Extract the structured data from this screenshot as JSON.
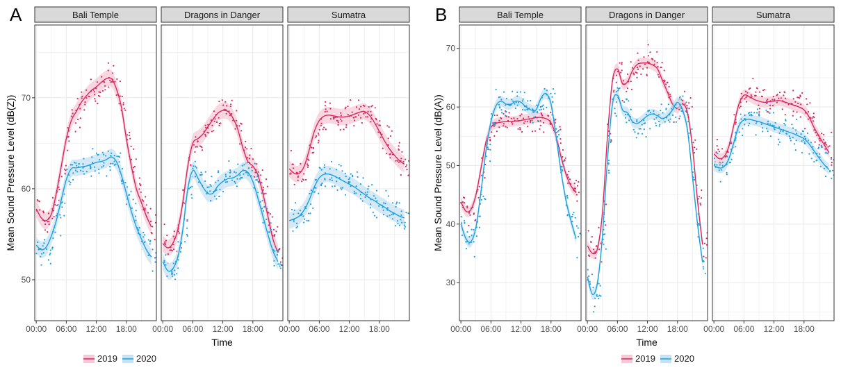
{
  "colors": {
    "series_2019": "#d6275e",
    "series_2020": "#1aa0e0",
    "band_2019": "#f6c9d6",
    "band_2020": "#c6e1f1",
    "strip_bg": "#d9d9d9",
    "grid": "#ebebeb"
  },
  "legend": {
    "items": [
      "2019",
      "2020"
    ]
  },
  "chart_data": [
    {
      "type": "line",
      "panel_label": "A",
      "xlabel": "Time",
      "ylabel": "Mean Sound Pressure Level (dB(Z))",
      "ylim": [
        45.5,
        78
      ],
      "xlim": [
        -0.3,
        24
      ],
      "y_ticks": [
        50,
        60,
        70
      ],
      "x_ticks": [
        0,
        6,
        12,
        18
      ],
      "x_tick_labels": [
        "00:00",
        "06:00",
        "12:00",
        "18:00"
      ],
      "grid": true,
      "legend_position": "bottom",
      "facets": [
        {
          "name": "Bali Temple",
          "series": [
            {
              "name": "2019",
              "x": [
                0,
                1,
                2,
                3,
                4,
                5,
                6,
                7,
                8,
                9,
                10,
                11,
                12,
                13,
                14,
                15,
                16,
                17,
                18,
                19,
                20,
                21,
                22,
                23
              ],
              "values": [
                57.8,
                56.8,
                56.5,
                57.2,
                59.5,
                62.5,
                65.5,
                67.5,
                68.5,
                69.5,
                70.2,
                70.8,
                71.2,
                71.7,
                72.1,
                72.1,
                71.0,
                69.0,
                65.5,
                62.5,
                60.0,
                58.5,
                57.0,
                55.8
              ]
            },
            {
              "name": "2020",
              "x": [
                0,
                1,
                2,
                3,
                4,
                5,
                6,
                7,
                8,
                9,
                10,
                11,
                12,
                13,
                14,
                15,
                16,
                17,
                18,
                19,
                20,
                21,
                22,
                23
              ],
              "values": [
                53.8,
                53.3,
                53.6,
                54.8,
                56.5,
                58.8,
                61.0,
                62.2,
                62.3,
                62.4,
                62.5,
                62.7,
                62.9,
                63.0,
                63.2,
                63.5,
                63.0,
                61.5,
                59.5,
                57.5,
                55.8,
                54.5,
                53.3,
                52.5
              ]
            }
          ]
        },
        {
          "name": "Dragons in Danger",
          "series": [
            {
              "name": "2019",
              "x": [
                0,
                1,
                2,
                3,
                4,
                5,
                6,
                7,
                8,
                9,
                10,
                11,
                12,
                13,
                14,
                15,
                16,
                17,
                18,
                19,
                20,
                21,
                22,
                23
              ],
              "values": [
                54.0,
                53.5,
                54.0,
                55.5,
                58.5,
                62.5,
                65.0,
                65.5,
                66.0,
                66.8,
                67.6,
                68.3,
                68.6,
                68.5,
                67.8,
                66.5,
                64.5,
                63.0,
                62.5,
                61.5,
                59.5,
                57.0,
                54.5,
                53.0
              ]
            },
            {
              "name": "2020",
              "x": [
                0,
                1,
                2,
                3,
                4,
                5,
                6,
                7,
                8,
                9,
                10,
                11,
                12,
                13,
                14,
                15,
                16,
                17,
                18,
                19,
                20,
                21,
                22,
                23
              ],
              "values": [
                52.0,
                51.0,
                51.2,
                52.5,
                55.5,
                60.0,
                62.0,
                61.2,
                60.2,
                59.5,
                59.5,
                60.3,
                60.8,
                61.1,
                61.2,
                61.5,
                62.0,
                61.8,
                60.8,
                59.0,
                57.0,
                55.0,
                53.2,
                52.0
              ]
            }
          ]
        },
        {
          "name": "Sumatra",
          "series": [
            {
              "name": "2019",
              "x": [
                0,
                1,
                2,
                3,
                4,
                5,
                6,
                7,
                8,
                9,
                10,
                11,
                12,
                13,
                14,
                15,
                16,
                17,
                18,
                19,
                20,
                21,
                22,
                23
              ],
              "values": [
                62.2,
                61.7,
                61.7,
                62.5,
                64.3,
                66.3,
                67.5,
                68.0,
                68.1,
                68.0,
                67.9,
                67.9,
                68.0,
                68.2,
                68.4,
                68.5,
                68.1,
                67.3,
                66.3,
                65.3,
                64.4,
                63.7,
                63.1,
                62.7
              ]
            },
            {
              "name": "2020",
              "x": [
                0,
                1,
                2,
                3,
                4,
                5,
                6,
                7,
                8,
                9,
                10,
                11,
                12,
                13,
                14,
                15,
                16,
                17,
                18,
                19,
                20,
                21,
                22,
                23
              ],
              "values": [
                56.5,
                56.7,
                57.0,
                57.7,
                58.8,
                60.2,
                61.2,
                61.6,
                61.6,
                61.4,
                61.1,
                60.8,
                60.5,
                60.2,
                59.8,
                59.4,
                59.0,
                58.7,
                58.3,
                58.0,
                57.6,
                57.3,
                57.0,
                56.8
              ]
            }
          ]
        }
      ]
    },
    {
      "type": "line",
      "panel_label": "B",
      "xlabel": "Time",
      "ylabel": "Mean Sound Pressure Level (dB(A))",
      "ylim": [
        23.5,
        74
      ],
      "xlim": [
        -0.3,
        24
      ],
      "y_ticks": [
        30,
        40,
        50,
        60,
        70
      ],
      "x_ticks": [
        0,
        6,
        12,
        18
      ],
      "x_tick_labels": [
        "00:00",
        "06:00",
        "12:00",
        "18:00"
      ],
      "grid": true,
      "legend_position": "bottom",
      "facets": [
        {
          "name": "Bali Temple",
          "series": [
            {
              "name": "2019",
              "x": [
                0,
                1,
                2,
                3,
                4,
                5,
                6,
                7,
                8,
                9,
                10,
                11,
                12,
                13,
                14,
                15,
                16,
                17,
                18,
                19,
                20,
                21,
                22,
                23
              ],
              "values": [
                43.8,
                42.2,
                42.5,
                45.0,
                49.5,
                54.0,
                56.5,
                57.2,
                57.4,
                57.5,
                57.5,
                57.6,
                57.7,
                57.9,
                58.0,
                58.2,
                58.2,
                58.0,
                57.3,
                55.0,
                51.5,
                48.5,
                46.5,
                45.5
              ]
            },
            {
              "name": "2020",
              "x": [
                0,
                1,
                2,
                3,
                4,
                5,
                6,
                7,
                8,
                9,
                10,
                11,
                12,
                13,
                14,
                15,
                16,
                17,
                18,
                19,
                20,
                21,
                22,
                23
              ],
              "values": [
                40.0,
                37.5,
                37.0,
                39.5,
                45.5,
                52.5,
                57.5,
                60.2,
                61.0,
                60.5,
                60.5,
                61.0,
                60.8,
                60.0,
                59.5,
                59.5,
                61.5,
                62.3,
                60.5,
                55.0,
                49.0,
                44.0,
                40.5,
                37.5
              ]
            }
          ]
        },
        {
          "name": "Dragons in Danger",
          "series": [
            {
              "name": "2019",
              "x": [
                0,
                1,
                2,
                3,
                4,
                5,
                6,
                7,
                8,
                9,
                10,
                11,
                12,
                13,
                14,
                15,
                16,
                17,
                18,
                19,
                20,
                21,
                22,
                23
              ],
              "values": [
                36.3,
                35.0,
                35.8,
                42.0,
                55.0,
                64.5,
                66.5,
                64.0,
                64.3,
                66.2,
                67.3,
                67.5,
                67.5,
                67.2,
                66.5,
                64.5,
                62.5,
                60.5,
                59.8,
                60.5,
                59.0,
                53.0,
                44.0,
                36.5
              ]
            },
            {
              "name": "2020",
              "x": [
                0,
                1,
                2,
                3,
                4,
                5,
                6,
                7,
                8,
                9,
                10,
                11,
                12,
                13,
                14,
                15,
                16,
                17,
                18,
                19,
                20,
                21,
                22,
                23
              ],
              "values": [
                31.0,
                28.0,
                30.0,
                38.0,
                51.0,
                60.5,
                62.0,
                59.5,
                59.0,
                57.5,
                57.2,
                57.8,
                58.5,
                58.8,
                58.5,
                58.0,
                58.5,
                59.5,
                60.8,
                59.5,
                56.0,
                48.0,
                40.0,
                33.5
              ]
            }
          ]
        },
        {
          "name": "Sumatra",
          "series": [
            {
              "name": "2019",
              "x": [
                0,
                1,
                2,
                3,
                4,
                5,
                6,
                7,
                8,
                9,
                10,
                11,
                12,
                13,
                14,
                15,
                16,
                17,
                18,
                19,
                20,
                21,
                22,
                23
              ],
              "values": [
                52.0,
                51.2,
                51.5,
                53.3,
                57.0,
                60.5,
                62.0,
                61.8,
                61.3,
                61.0,
                60.8,
                60.9,
                61.0,
                61.1,
                60.9,
                60.6,
                60.3,
                60.0,
                59.5,
                58.3,
                56.5,
                55.0,
                53.6,
                52.2
              ]
            },
            {
              "name": "2020",
              "x": [
                0,
                1,
                2,
                3,
                4,
                5,
                6,
                7,
                8,
                9,
                10,
                11,
                12,
                13,
                14,
                15,
                16,
                17,
                18,
                19,
                20,
                21,
                22,
                23
              ],
              "values": [
                50.0,
                49.6,
                49.8,
                51.2,
                54.0,
                56.8,
                57.8,
                57.9,
                57.7,
                57.5,
                57.2,
                56.9,
                56.6,
                56.3,
                56.0,
                55.7,
                55.4,
                55.0,
                54.6,
                53.7,
                52.5,
                51.3,
                50.2,
                49.3
              ]
            }
          ]
        }
      ]
    }
  ]
}
